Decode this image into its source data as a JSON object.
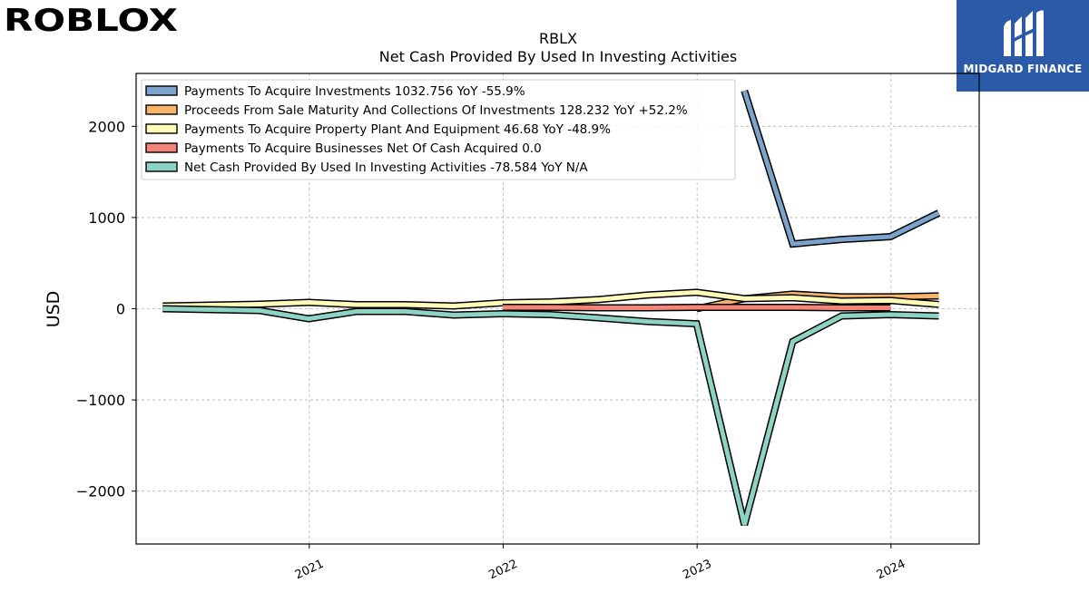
{
  "header": {
    "left_logo_text": "ROBLOX",
    "right_logo_text": "MIDGARD FINANCE"
  },
  "chart_data": {
    "type": "line",
    "title": "RBLX",
    "subtitle": "Net Cash Provided By Used In Investing Activities",
    "xlabel": "",
    "ylabel": "USD",
    "ylim": [
      -2580,
      2580
    ],
    "yticks": [
      2000,
      1000,
      0,
      -1000,
      -2000
    ],
    "ytick_labels": [
      "2000",
      "1000",
      "0",
      "−1000",
      "−2000"
    ],
    "xlim": [
      "2020-02-10",
      "2024-06-15"
    ],
    "xticks": [
      "2021-01-01",
      "2022-01-01",
      "2023-01-01",
      "2024-01-01"
    ],
    "xtick_labels": [
      "2021",
      "2022",
      "2023",
      "2024"
    ],
    "grid": true,
    "legend_position": "top-left",
    "series": [
      {
        "name": "Payments To Acquire Investments",
        "legend": "Payments To Acquire Investments  1032.756 YoY -55.9%",
        "color": "#7ba3cc",
        "points": [
          [
            "2023-03-31",
            2390
          ],
          [
            "2023-06-30",
            710
          ],
          [
            "2023-09-30",
            760
          ],
          [
            "2023-12-31",
            790
          ],
          [
            "2024-03-31",
            1050
          ]
        ]
      },
      {
        "name": "Proceeds From Sale Maturity And Collections Of Investments",
        "legend": "Proceeds From Sale Maturity And Collections Of Investments  128.232 YoY +52.2%",
        "color": "#f9b36b",
        "points": [
          [
            "2022-12-31",
            0
          ],
          [
            "2023-03-31",
            110
          ],
          [
            "2023-06-30",
            160
          ],
          [
            "2023-09-30",
            130
          ],
          [
            "2023-12-31",
            130
          ],
          [
            "2024-03-31",
            140
          ]
        ]
      },
      {
        "name": "Payments To Acquire Property Plant And Equipment",
        "legend": "Payments To Acquire Property Plant And Equipment  46.68 YoY -48.9%",
        "color": "#fffbb8",
        "points": [
          [
            "2020-03-31",
            30
          ],
          [
            "2020-06-30",
            40
          ],
          [
            "2020-09-30",
            50
          ],
          [
            "2020-12-31",
            70
          ],
          [
            "2021-03-31",
            45
          ],
          [
            "2021-06-30",
            45
          ],
          [
            "2021-09-30",
            30
          ],
          [
            "2021-12-31",
            65
          ],
          [
            "2022-03-31",
            75
          ],
          [
            "2022-06-30",
            100
          ],
          [
            "2022-09-30",
            150
          ],
          [
            "2022-12-31",
            180
          ],
          [
            "2023-03-31",
            110
          ],
          [
            "2023-06-30",
            120
          ],
          [
            "2023-09-30",
            85
          ],
          [
            "2023-12-31",
            90
          ],
          [
            "2024-03-31",
            47
          ]
        ]
      },
      {
        "name": "Payments To Acquire Businesses Net Of Cash Acquired",
        "legend": "Payments To Acquire Businesses Net Of Cash Acquired  0.0",
        "color": "#f58478",
        "points": [
          [
            "2021-12-31",
            15
          ],
          [
            "2022-03-31",
            15
          ],
          [
            "2022-06-30",
            10
          ],
          [
            "2022-09-30",
            10
          ],
          [
            "2022-12-31",
            15
          ],
          [
            "2023-03-31",
            15
          ],
          [
            "2023-06-30",
            15
          ],
          [
            "2023-09-30",
            10
          ],
          [
            "2023-12-31",
            10
          ]
        ]
      },
      {
        "name": "Net Cash Provided By Used In Investing Activities",
        "legend": "Net Cash Provided By Used In Investing Activities  -78.584 YoY N/A",
        "color": "#8dd3c4",
        "points": [
          [
            "2020-03-31",
            0
          ],
          [
            "2020-06-30",
            -10
          ],
          [
            "2020-09-30",
            -20
          ],
          [
            "2020-12-31",
            -110
          ],
          [
            "2021-03-31",
            -30
          ],
          [
            "2021-06-30",
            -30
          ],
          [
            "2021-09-30",
            -70
          ],
          [
            "2021-12-31",
            -55
          ],
          [
            "2022-03-31",
            -65
          ],
          [
            "2022-06-30",
            -100
          ],
          [
            "2022-09-30",
            -140
          ],
          [
            "2022-12-31",
            -165
          ],
          [
            "2023-03-31",
            -2370
          ],
          [
            "2023-06-30",
            -360
          ],
          [
            "2023-09-30",
            -80
          ],
          [
            "2023-12-31",
            -65
          ],
          [
            "2024-03-31",
            -80
          ]
        ]
      }
    ]
  }
}
